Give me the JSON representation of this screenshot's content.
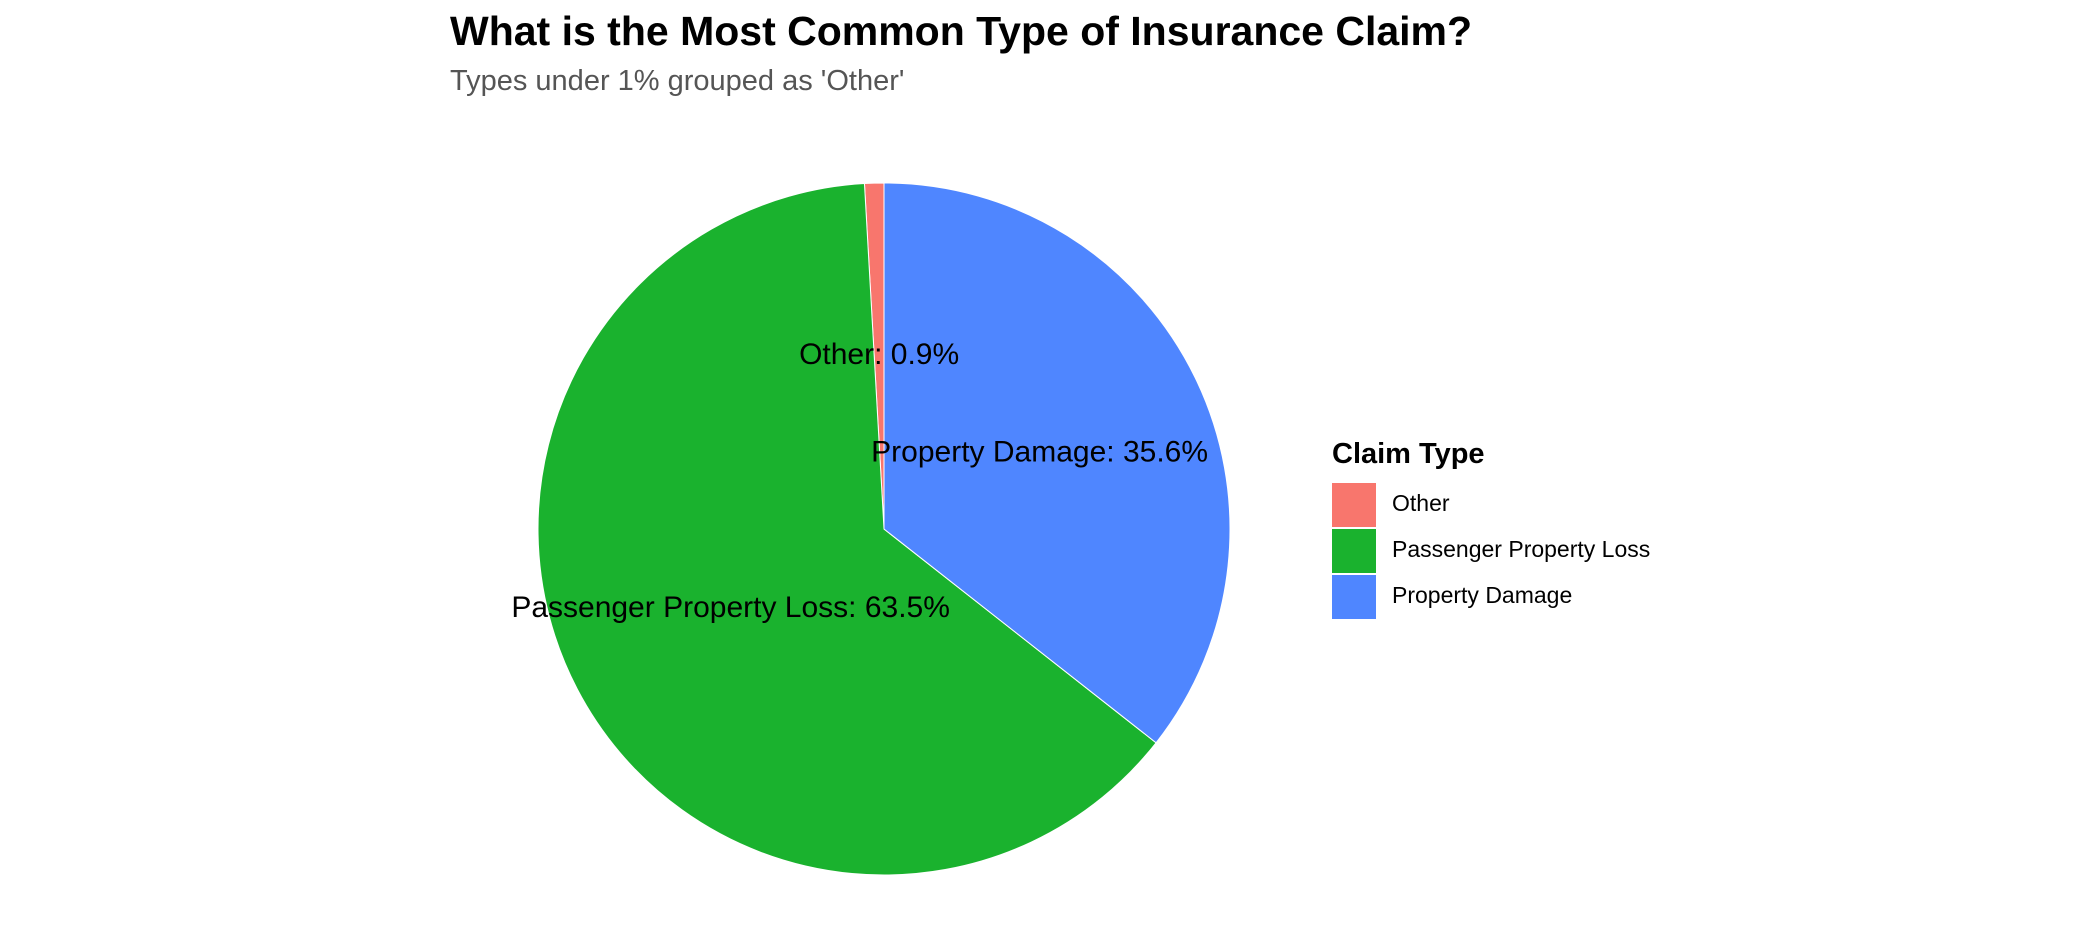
{
  "chart_data": {
    "type": "pie",
    "title": "What is the Most Common Type of Insurance Claim?",
    "subtitle": "Types under 1% grouped as 'Other'",
    "categories": [
      "Other",
      "Passenger Property Loss",
      "Property Damage"
    ],
    "values": [
      0.9,
      63.5,
      35.6
    ],
    "unit": "%",
    "slice_labels": [
      "Other: 0.9%",
      "Passenger Property Loss: 63.5%",
      "Property Damage: 35.6%"
    ],
    "colors": [
      "#F8766D",
      "#1AB22E",
      "#4F86FF"
    ],
    "legend": {
      "title": "Claim Type",
      "placement": "right",
      "entries": [
        "Other",
        "Passenger Property Loss",
        "Property Damage"
      ]
    },
    "grid": false
  }
}
